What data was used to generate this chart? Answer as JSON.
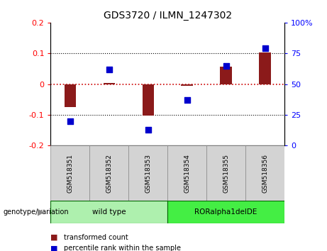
{
  "title": "GDS3720 / ILMN_1247302",
  "samples": [
    "GSM518351",
    "GSM518352",
    "GSM518353",
    "GSM518354",
    "GSM518355",
    "GSM518356"
  ],
  "groups": [
    {
      "name": "wild type",
      "indices": [
        0,
        1,
        2
      ],
      "color": "#aef0ae"
    },
    {
      "name": "RORalpha1delDE",
      "indices": [
        3,
        4,
        5
      ],
      "color": "#44ee44"
    }
  ],
  "transformed_count": [
    -0.075,
    0.003,
    -0.102,
    -0.005,
    0.057,
    0.102
  ],
  "percentile_rank": [
    20,
    62,
    13,
    37,
    65,
    79
  ],
  "bar_color": "#8B1A1A",
  "dot_color": "#0000CD",
  "ylim_left": [
    -0.2,
    0.2
  ],
  "ylim_right": [
    0,
    100
  ],
  "yticks_left": [
    -0.2,
    -0.1,
    0.0,
    0.1,
    0.2
  ],
  "yticks_right": [
    0,
    25,
    50,
    75,
    100
  ],
  "hline_color": "#CC0000",
  "grid_color": "black",
  "background_color": "white",
  "label_transformed": "transformed count",
  "label_percentile": "percentile rank within the sample",
  "genotype_label": "genotype/variation",
  "sample_box_color": "#d3d3d3",
  "sample_box_edge": "#888888"
}
